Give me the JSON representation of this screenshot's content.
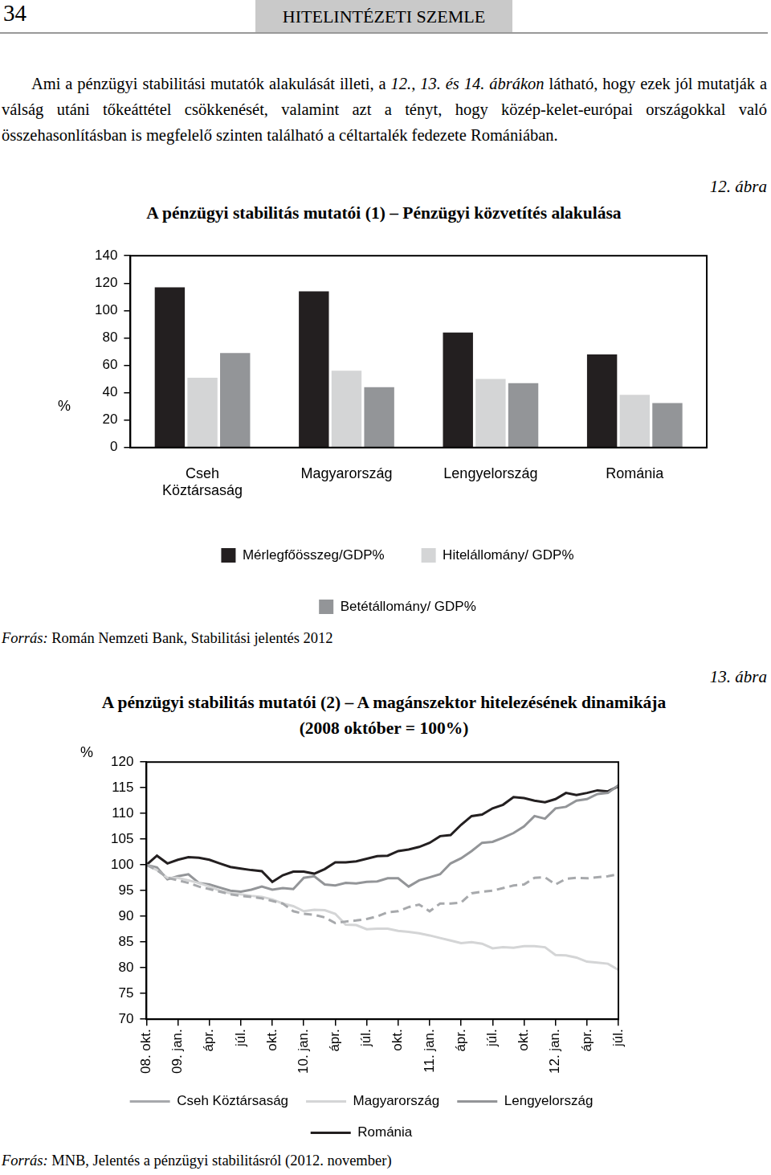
{
  "page": {
    "number": "34",
    "journal": "HITELINTÉZETI SZEMLE"
  },
  "paragraph": [
    {
      "text": "Ami a pénzügyi stabilitási mutatók alakulását illeti, a ",
      "italic": false
    },
    {
      "text": "12., 13. és 14. ábrákon",
      "italic": true
    },
    {
      "text": " látható, hogy ezek jól mutatják a válság utáni tőkeáttétel csökkenését, valamint azt a tényt, hogy közép-kelet-európai országokkal való összehasonlításban is megfelelő szinten található a céltartalék fedezete Romániában.",
      "italic": false
    }
  ],
  "chart_data": [
    {
      "figure": "12. ábra",
      "title": "A pénzügyi stabilitás mutatói (1) – Pénzügyi közvetítés alakulása",
      "type": "bar",
      "y_label": "%",
      "categories": [
        [
          "Cseh",
          "Köztársaság"
        ],
        "Magyarország",
        "Lengyelország",
        "Románia"
      ],
      "series": [
        {
          "name": "Mérlegfőösszeg/GDP%",
          "color": "#231f20",
          "values": [
            117,
            114,
            84,
            68
          ]
        },
        {
          "name": "Hitelállomány/ GDP%",
          "color": "#d4d5d6",
          "values": [
            51,
            56,
            50,
            38.5
          ]
        },
        {
          "name": "Betétállomány/ GDP%",
          "color": "#939598",
          "values": [
            69,
            44,
            47,
            32.5
          ]
        }
      ],
      "ylim": [
        0,
        140
      ],
      "yticks": [
        0,
        20,
        40,
        60,
        80,
        100,
        120,
        140
      ],
      "grid": false,
      "legend": "bottom",
      "source_label": "Forrás:",
      "source": "Román Nemzeti Bank, Stabilitási jelentés 2012"
    },
    {
      "figure": "13. ábra",
      "title": [
        "A pénzügyi stabilitás mutatói (2) – A magánszektor hitelezésének dinamikája",
        "(2008 október = 100%)"
      ],
      "type": "line",
      "y_label": "%",
      "categories": [
        "08. okt.",
        null,
        null,
        "09. jan.",
        null,
        null,
        "ápr.",
        null,
        null,
        "júl.",
        null,
        null,
        "okt.",
        null,
        null,
        "10. jan.",
        null,
        null,
        "ápr.",
        null,
        null,
        "júl.",
        null,
        null,
        "okt.",
        null,
        null,
        "11. jan.",
        null,
        null,
        "ápr.",
        null,
        null,
        "júl.",
        null,
        null,
        "okt.",
        null,
        null,
        "12. jan.",
        null,
        null,
        "ápr.",
        null,
        null,
        "júl."
      ],
      "series": [
        {
          "name": "Cseh Köztársaság",
          "color": "#a7a9ac",
          "line_style": "dashed",
          "values": [
            100,
            99,
            97.5,
            97,
            96.5,
            95.8,
            95.3,
            94.8,
            94.3,
            94,
            93.8,
            93.5,
            93,
            92.5,
            91,
            90.5,
            90.3,
            89.8,
            88.7,
            89,
            89.2,
            89.5,
            90,
            90.8,
            91,
            91.8,
            92.3,
            91,
            92.5,
            92.5,
            92.7,
            94.5,
            94.8,
            95,
            95.5,
            96,
            96.2,
            97.5,
            97.6,
            96.2,
            97.3,
            97.5,
            97.4,
            97.6,
            97.8,
            98.2
          ]
        },
        {
          "name": "Magyarország",
          "color": "#d4d5d6",
          "line_style": "solid",
          "values": [
            100,
            99,
            97.5,
            97.5,
            97,
            96.5,
            95.8,
            95,
            94.5,
            94.3,
            94,
            93.8,
            93.3,
            92.5,
            92,
            91,
            91.3,
            91.2,
            90.5,
            88.4,
            88.3,
            87.5,
            87.6,
            87.6,
            87.2,
            87,
            86.7,
            86.3,
            85.8,
            85.3,
            84.8,
            85,
            84.7,
            83.8,
            84,
            83.9,
            84.2,
            84.2,
            84,
            82.5,
            82.4,
            82,
            81.2,
            81,
            80.8,
            79.6
          ]
        },
        {
          "name": "Lengyelország",
          "color": "#939598",
          "line_style": "solid",
          "values": [
            100,
            99.5,
            97.2,
            97.8,
            98.2,
            96.5,
            96.2,
            95.6,
            95,
            94.8,
            95.2,
            95.8,
            95.2,
            95.5,
            95.3,
            97.5,
            97.8,
            96.2,
            96,
            96.5,
            96.4,
            96.7,
            96.8,
            97.4,
            97.4,
            95.8,
            97,
            97.6,
            98.2,
            100.3,
            101.3,
            102.7,
            104.3,
            104.5,
            105.3,
            106.2,
            107.5,
            109.5,
            109,
            111,
            111.3,
            112.5,
            112.8,
            113.8,
            114,
            115.5
          ]
        },
        {
          "name": "Románia",
          "color": "#231f20",
          "line_style": "solid",
          "values": [
            100,
            101.8,
            100.3,
            101,
            101.5,
            101.4,
            101,
            100.3,
            99.6,
            99.3,
            99,
            98.8,
            96.7,
            98,
            98.7,
            98.7,
            98.3,
            99.2,
            100.5,
            100.5,
            100.7,
            101.2,
            101.7,
            101.8,
            102.7,
            103,
            103.5,
            104.3,
            105.6,
            105.8,
            107.8,
            109.5,
            109.8,
            111,
            111.7,
            113.2,
            113,
            112.5,
            112.2,
            112.8,
            114,
            113.6,
            114,
            114.5,
            114.3,
            115.3
          ]
        }
      ],
      "ylim": [
        70,
        120
      ],
      "yticks": [
        70,
        75,
        80,
        85,
        90,
        95,
        100,
        105,
        110,
        115,
        120
      ],
      "grid": false,
      "legend": "bottom",
      "source_label": "Forrás:",
      "source": "MNB, Jelentés a pénzügyi stabilitásról (2012. november)"
    }
  ]
}
